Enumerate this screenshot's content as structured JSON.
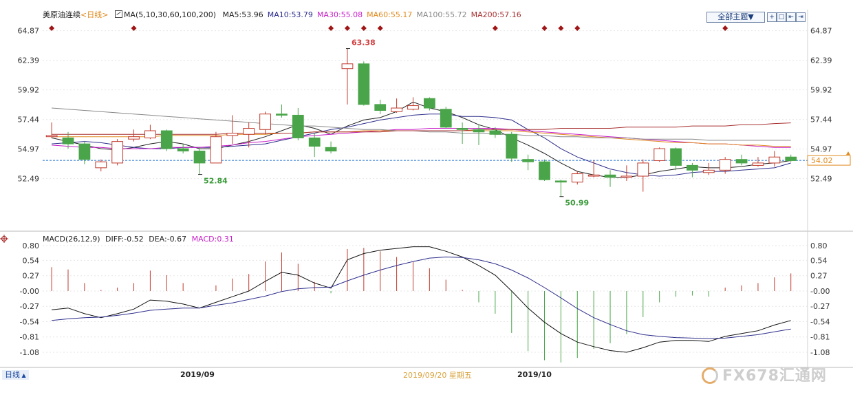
{
  "header": {
    "instrument": "美原油连续",
    "period_tag": "<日线>",
    "ma_spec": "MA(5,10,30,60,100,200)",
    "ma_values": [
      {
        "label": "MA5:53.96",
        "color": "#222222"
      },
      {
        "label": "MA10:53.79",
        "color": "#2d2d8c"
      },
      {
        "label": "MA30:55.08",
        "color": "#c81fc8"
      },
      {
        "label": "MA60:55.17",
        "color": "#e08a1e"
      },
      {
        "label": "MA100:55.72",
        "color": "#888888"
      },
      {
        "label": "MA200:57.16",
        "color": "#a83030"
      }
    ],
    "topic_button": "全部主题▼",
    "controls": [
      "+",
      "□",
      "⇤",
      "⇥"
    ]
  },
  "price_last_label": "54.02",
  "macd_header": {
    "spec": "MACD(26,12,9)",
    "diff": "DIFF:-0.52",
    "dea": "DEA:-0.67",
    "macd": "MACD:0.31"
  },
  "footer": {
    "period_button": "日线",
    "month_labels": [
      "2019/09",
      "2019/10"
    ],
    "cursor_date": "2019/09/20 星期五",
    "watermark": "FX678汇通网"
  },
  "colors": {
    "up": "#c0392b",
    "down": "#4aa54a",
    "marker": "#a01515",
    "lastline": "#1f6fd0"
  },
  "chart_data": [
    {
      "type": "candlestick",
      "title": "美原油连续 日线",
      "y_ticks": [
        "64.87",
        "62.39",
        "59.92",
        "57.44",
        "54.97",
        "52.49"
      ],
      "ylim": [
        50.8,
        65.6
      ],
      "annotations": [
        {
          "label": "63.38",
          "index": 18,
          "kind": "high"
        },
        {
          "label": "52.84",
          "index": 9,
          "kind": "low"
        },
        {
          "label": "50.99",
          "index": 31,
          "kind": "low"
        }
      ],
      "event_marker_indices": [
        0,
        5,
        17,
        18,
        19,
        20,
        27,
        30,
        31,
        32,
        41
      ],
      "candles": [
        {
          "o": 56.0,
          "c": 56.1,
          "h": 57.2,
          "l": 55.9
        },
        {
          "o": 55.9,
          "c": 55.4,
          "h": 56.4,
          "l": 55.0
        },
        {
          "o": 55.4,
          "c": 54.1,
          "h": 55.6,
          "l": 53.7
        },
        {
          "o": 53.4,
          "c": 53.9,
          "h": 54.1,
          "l": 53.1
        },
        {
          "o": 53.8,
          "c": 55.6,
          "h": 55.8,
          "l": 53.6
        },
        {
          "o": 55.8,
          "c": 56.0,
          "h": 56.6,
          "l": 55.6
        },
        {
          "o": 55.9,
          "c": 56.5,
          "h": 57.0,
          "l": 55.8
        },
        {
          "o": 56.5,
          "c": 55.0,
          "h": 56.6,
          "l": 54.8
        },
        {
          "o": 55.0,
          "c": 54.8,
          "h": 55.4,
          "l": 54.6
        },
        {
          "o": 54.8,
          "c": 53.8,
          "h": 55.1,
          "l": 52.84
        },
        {
          "o": 53.8,
          "c": 56.0,
          "h": 56.4,
          "l": 53.8
        },
        {
          "o": 56.1,
          "c": 56.3,
          "h": 57.8,
          "l": 55.4
        },
        {
          "o": 56.2,
          "c": 56.7,
          "h": 57.2,
          "l": 55.1
        },
        {
          "o": 56.6,
          "c": 57.9,
          "h": 58.1,
          "l": 56.2
        },
        {
          "o": 57.9,
          "c": 57.8,
          "h": 58.7,
          "l": 57.6
        },
        {
          "o": 57.8,
          "c": 55.9,
          "h": 58.4,
          "l": 55.7
        },
        {
          "o": 55.9,
          "c": 55.2,
          "h": 56.3,
          "l": 54.3
        },
        {
          "o": 55.1,
          "c": 54.8,
          "h": 55.6,
          "l": 54.6
        },
        {
          "o": 61.7,
          "c": 62.1,
          "h": 63.38,
          "l": 58.7
        },
        {
          "o": 62.1,
          "c": 58.7,
          "h": 62.3,
          "l": 58.6
        },
        {
          "o": 58.7,
          "c": 58.2,
          "h": 59.1,
          "l": 57.9
        },
        {
          "o": 58.1,
          "c": 58.4,
          "h": 59.2,
          "l": 58.0
        },
        {
          "o": 58.3,
          "c": 58.6,
          "h": 59.3,
          "l": 58.2
        },
        {
          "o": 59.2,
          "c": 58.4,
          "h": 59.3,
          "l": 58.2
        },
        {
          "o": 58.3,
          "c": 56.8,
          "h": 58.5,
          "l": 56.7
        },
        {
          "o": 56.7,
          "c": 56.6,
          "h": 57.2,
          "l": 55.4
        },
        {
          "o": 56.6,
          "c": 56.4,
          "h": 57.0,
          "l": 55.3
        },
        {
          "o": 56.5,
          "c": 56.2,
          "h": 56.8,
          "l": 55.9
        },
        {
          "o": 56.2,
          "c": 54.2,
          "h": 56.4,
          "l": 53.9
        },
        {
          "o": 54.1,
          "c": 53.9,
          "h": 54.5,
          "l": 53.2
        },
        {
          "o": 53.9,
          "c": 52.4,
          "h": 54.1,
          "l": 52.3
        },
        {
          "o": 52.3,
          "c": 52.2,
          "h": 52.4,
          "l": 50.99
        },
        {
          "o": 52.2,
          "c": 52.9,
          "h": 53.1,
          "l": 52.0
        },
        {
          "o": 52.7,
          "c": 52.8,
          "h": 54.0,
          "l": 52.6
        },
        {
          "o": 52.8,
          "c": 52.6,
          "h": 53.2,
          "l": 51.8
        },
        {
          "o": 52.7,
          "c": 52.7,
          "h": 53.6,
          "l": 52.3
        },
        {
          "o": 52.7,
          "c": 53.8,
          "h": 54.1,
          "l": 51.4
        },
        {
          "o": 54.0,
          "c": 55.0,
          "h": 55.1,
          "l": 53.9
        },
        {
          "o": 55.0,
          "c": 53.6,
          "h": 55.1,
          "l": 53.2
        },
        {
          "o": 53.6,
          "c": 53.2,
          "h": 53.8,
          "l": 52.6
        },
        {
          "o": 53.0,
          "c": 53.2,
          "h": 53.8,
          "l": 52.8
        },
        {
          "o": 53.2,
          "c": 54.1,
          "h": 54.3,
          "l": 52.9
        },
        {
          "o": 54.1,
          "c": 53.8,
          "h": 54.5,
          "l": 53.6
        },
        {
          "o": 53.6,
          "c": 53.8,
          "h": 54.3,
          "l": 53.5
        },
        {
          "o": 53.8,
          "c": 54.3,
          "h": 54.8,
          "l": 53.5
        },
        {
          "o": 54.3,
          "c": 54.0,
          "h": 54.5,
          "l": 53.9
        }
      ],
      "ma_series": [
        {
          "name": "MA5",
          "values": [
            55.9,
            55.6,
            55.3,
            55.0,
            54.9,
            55.1,
            55.4,
            55.6,
            55.4,
            55.0,
            55.0,
            55.3,
            55.6,
            56.0,
            56.5,
            57.0,
            56.7,
            56.2,
            56.9,
            57.4,
            57.6,
            58.1,
            58.9,
            58.4,
            58.1,
            57.6,
            57.0,
            56.6,
            55.9,
            55.3,
            54.6,
            53.8,
            53.1,
            52.8,
            52.6,
            52.6,
            52.8,
            53.1,
            53.3,
            53.5,
            53.4,
            53.4,
            53.5,
            53.7,
            53.8,
            54.0
          ]
        },
        {
          "name": "MA10",
          "values": [
            55.4,
            55.5,
            55.6,
            55.5,
            55.3,
            55.1,
            55.0,
            55.0,
            55.1,
            55.1,
            55.1,
            55.2,
            55.3,
            55.4,
            55.7,
            56.0,
            56.3,
            56.6,
            56.8,
            57.1,
            57.4,
            57.6,
            57.8,
            57.9,
            57.9,
            57.7,
            57.7,
            57.6,
            57.4,
            56.6,
            55.9,
            55.0,
            54.3,
            53.8,
            53.3,
            53.0,
            52.8,
            52.7,
            52.8,
            53.0,
            53.1,
            53.1,
            53.2,
            53.3,
            53.4,
            53.8
          ]
        },
        {
          "name": "MA30",
          "values": [
            55.3,
            55.2,
            55.1,
            55.1,
            55.0,
            55.0,
            55.0,
            55.1,
            55.1,
            55.1,
            55.2,
            55.3,
            55.5,
            55.6,
            55.8,
            56.0,
            56.1,
            56.2,
            56.3,
            56.4,
            56.5,
            56.6,
            56.6,
            56.7,
            56.7,
            56.7,
            56.7,
            56.7,
            56.6,
            56.5,
            56.4,
            56.3,
            56.2,
            56.1,
            56.0,
            55.9,
            55.8,
            55.7,
            55.6,
            55.5,
            55.4,
            55.4,
            55.3,
            55.2,
            55.1,
            55.1
          ]
        },
        {
          "name": "MA60",
          "values": [
            56.0,
            56.0,
            56.0,
            56.0,
            56.0,
            56.0,
            56.0,
            56.1,
            56.1,
            56.1,
            56.1,
            56.2,
            56.2,
            56.2,
            56.3,
            56.3,
            56.4,
            56.4,
            56.4,
            56.5,
            56.5,
            56.5,
            56.5,
            56.5,
            56.5,
            56.5,
            56.5,
            56.5,
            56.5,
            56.4,
            56.3,
            56.2,
            56.1,
            56.0,
            55.9,
            55.8,
            55.7,
            55.6,
            55.5,
            55.5,
            55.4,
            55.4,
            55.3,
            55.3,
            55.2,
            55.2
          ]
        },
        {
          "name": "MA100",
          "values": [
            58.4,
            58.3,
            58.2,
            58.1,
            58.0,
            57.9,
            57.8,
            57.7,
            57.6,
            57.5,
            57.4,
            57.3,
            57.2,
            57.1,
            57.0,
            56.9,
            56.9,
            56.8,
            56.7,
            56.6,
            56.6,
            56.5,
            56.5,
            56.4,
            56.4,
            56.3,
            56.3,
            56.2,
            56.2,
            56.1,
            56.1,
            56.0,
            56.0,
            55.9,
            55.9,
            55.9,
            55.8,
            55.8,
            55.8,
            55.8,
            55.7,
            55.7,
            55.7,
            55.7,
            55.7,
            55.7
          ]
        },
        {
          "name": "MA200",
          "values": [
            56.2,
            56.2,
            56.2,
            56.2,
            56.2,
            56.2,
            56.2,
            56.2,
            56.2,
            56.2,
            56.2,
            56.3,
            56.3,
            56.3,
            56.3,
            56.3,
            56.4,
            56.4,
            56.4,
            56.4,
            56.4,
            56.5,
            56.5,
            56.5,
            56.5,
            56.5,
            56.6,
            56.6,
            56.6,
            56.6,
            56.6,
            56.7,
            56.7,
            56.7,
            56.7,
            56.8,
            56.8,
            56.8,
            56.8,
            56.9,
            56.9,
            56.9,
            57.0,
            57.0,
            57.1,
            57.16
          ]
        }
      ],
      "last_price": 54.02
    },
    {
      "type": "macd",
      "title": "MACD(26,12,9)",
      "y_ticks": [
        "0.80",
        "0.54",
        "0.27",
        "-0.00",
        "-0.27",
        "-0.54",
        "-0.81",
        "-1.08"
      ],
      "ylim": [
        -1.34,
        0.8
      ],
      "diff": [
        -0.33,
        -0.3,
        -0.4,
        -0.47,
        -0.4,
        -0.32,
        -0.16,
        -0.18,
        -0.23,
        -0.3,
        -0.2,
        -0.1,
        0.0,
        0.17,
        0.33,
        0.28,
        0.14,
        0.05,
        0.55,
        0.66,
        0.72,
        0.75,
        0.78,
        0.78,
        0.7,
        0.6,
        0.45,
        0.28,
        0.0,
        -0.3,
        -0.55,
        -0.75,
        -0.9,
        -0.98,
        -1.05,
        -1.08,
        -1.0,
        -0.9,
        -0.87,
        -0.87,
        -0.89,
        -0.8,
        -0.75,
        -0.7,
        -0.6,
        -0.52
      ],
      "dea": [
        -0.52,
        -0.49,
        -0.47,
        -0.46,
        -0.43,
        -0.39,
        -0.34,
        -0.32,
        -0.3,
        -0.3,
        -0.25,
        -0.21,
        -0.15,
        -0.09,
        -0.01,
        0.04,
        0.06,
        0.07,
        0.18,
        0.28,
        0.37,
        0.45,
        0.52,
        0.58,
        0.6,
        0.59,
        0.55,
        0.48,
        0.37,
        0.23,
        0.06,
        -0.12,
        -0.31,
        -0.47,
        -0.59,
        -0.7,
        -0.77,
        -0.8,
        -0.82,
        -0.83,
        -0.84,
        -0.83,
        -0.8,
        -0.77,
        -0.72,
        -0.67
      ],
      "macd": [
        0.42,
        0.38,
        0.14,
        0.02,
        0.06,
        0.14,
        0.36,
        0.28,
        0.14,
        0.0,
        0.1,
        0.22,
        0.3,
        0.52,
        0.68,
        0.48,
        0.16,
        -0.04,
        0.74,
        0.76,
        0.7,
        0.6,
        0.52,
        0.4,
        0.2,
        0.02,
        -0.2,
        -0.4,
        -0.74,
        -1.06,
        -1.22,
        -1.26,
        -1.18,
        -1.02,
        -0.92,
        -0.76,
        -0.46,
        -0.2,
        -0.1,
        -0.08,
        -0.1,
        0.06,
        0.1,
        0.14,
        0.24,
        0.31
      ]
    }
  ]
}
